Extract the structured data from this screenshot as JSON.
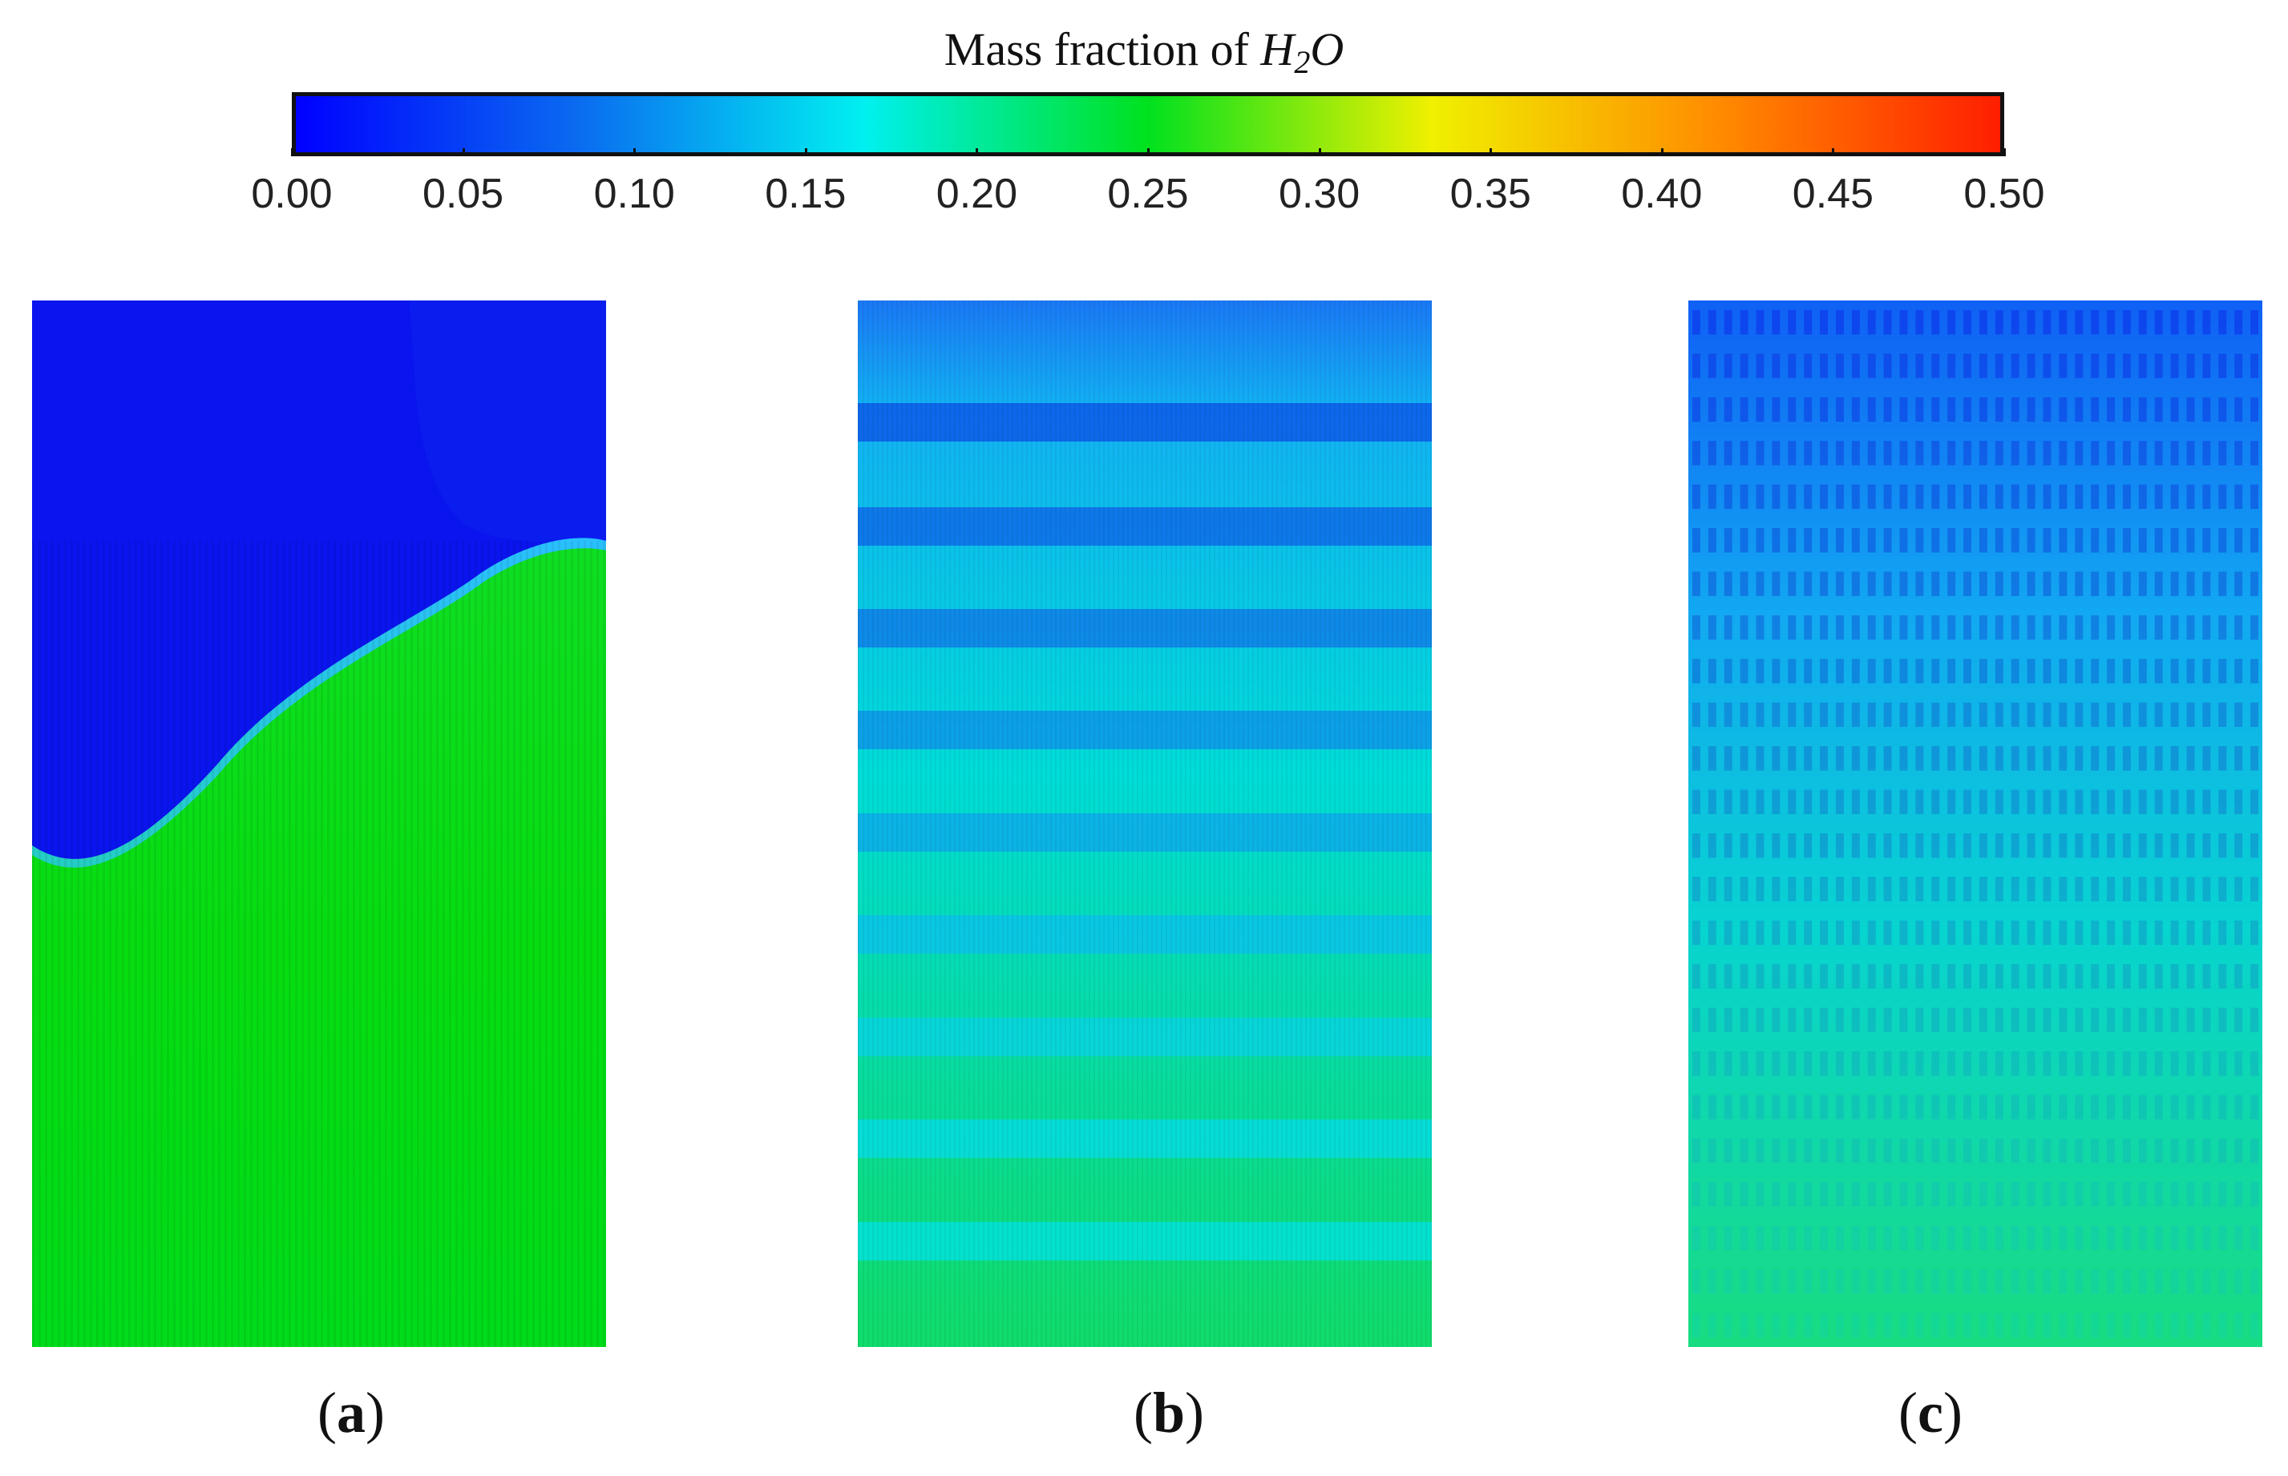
{
  "colorbar": {
    "title_prefix": "Mass fraction of ",
    "title_symbol_h": "H",
    "title_symbol_sub": "2",
    "title_symbol_o": "O",
    "min": 0.0,
    "max": 0.5,
    "ticks": [
      "0.00",
      "0.05",
      "0.10",
      "0.15",
      "0.20",
      "0.25",
      "0.30",
      "0.35",
      "0.40",
      "0.45",
      "0.50"
    ],
    "colors": [
      "#0000ff",
      "#0a6cf0",
      "#00f0f0",
      "#00e11e",
      "#f0f000",
      "#ff8c00",
      "#ff1e00"
    ]
  },
  "panels": [
    {
      "paren_open": "(",
      "letter": "a",
      "paren_close": ")",
      "description_value_range": [
        0.01,
        0.26
      ]
    },
    {
      "paren_open": "(",
      "letter": "b",
      "paren_close": ")",
      "description_value_range": [
        0.06,
        0.22
      ]
    },
    {
      "paren_open": "(",
      "letter": "c",
      "paren_close": ")",
      "description_value_range": [
        0.04,
        0.22
      ]
    }
  ]
}
